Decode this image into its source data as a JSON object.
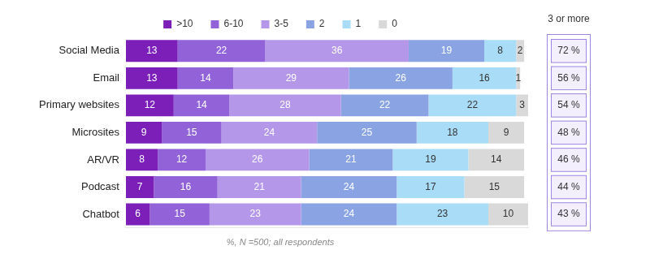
{
  "chart_data": {
    "type": "bar",
    "orientation": "horizontal",
    "stacked": true,
    "data_labels": true,
    "tick_labels": "y",
    "grid": false,
    "legend": "top",
    "categories": [
      "Social Media",
      "Email",
      "Primary websites",
      "Microsites",
      "AR/VR",
      "Podcast",
      "Chatbot"
    ],
    "series": [
      {
        "name": ">10",
        "color": "#7b1fb8",
        "values": [
          13,
          13,
          12,
          9,
          8,
          7,
          6
        ]
      },
      {
        "name": "6-10",
        "color": "#9263d8",
        "values": [
          22,
          14,
          14,
          15,
          12,
          16,
          15
        ]
      },
      {
        "name": "3-5",
        "color": "#b497e8",
        "values": [
          36,
          29,
          28,
          24,
          26,
          21,
          23
        ]
      },
      {
        "name": "2",
        "color": "#8aa3e3",
        "values": [
          19,
          26,
          22,
          25,
          21,
          24,
          24
        ]
      },
      {
        "name": "1",
        "color": "#a9ddf7",
        "values": [
          8,
          16,
          22,
          18,
          19,
          17,
          23
        ]
      },
      {
        "name": "0",
        "color": "#d9d9d9",
        "values": [
          2,
          1,
          3,
          9,
          14,
          15,
          10
        ]
      }
    ],
    "xlim": [
      0,
      101
    ],
    "side_column": {
      "title": "3 or more",
      "values": [
        72,
        56,
        54,
        48,
        46,
        44,
        43
      ],
      "value_labels": [
        "72 %",
        "56 %",
        "54 %",
        "48 %",
        "46 %",
        "44 %",
        "43 %"
      ]
    },
    "footnote": "%, N =500; all respondents"
  }
}
